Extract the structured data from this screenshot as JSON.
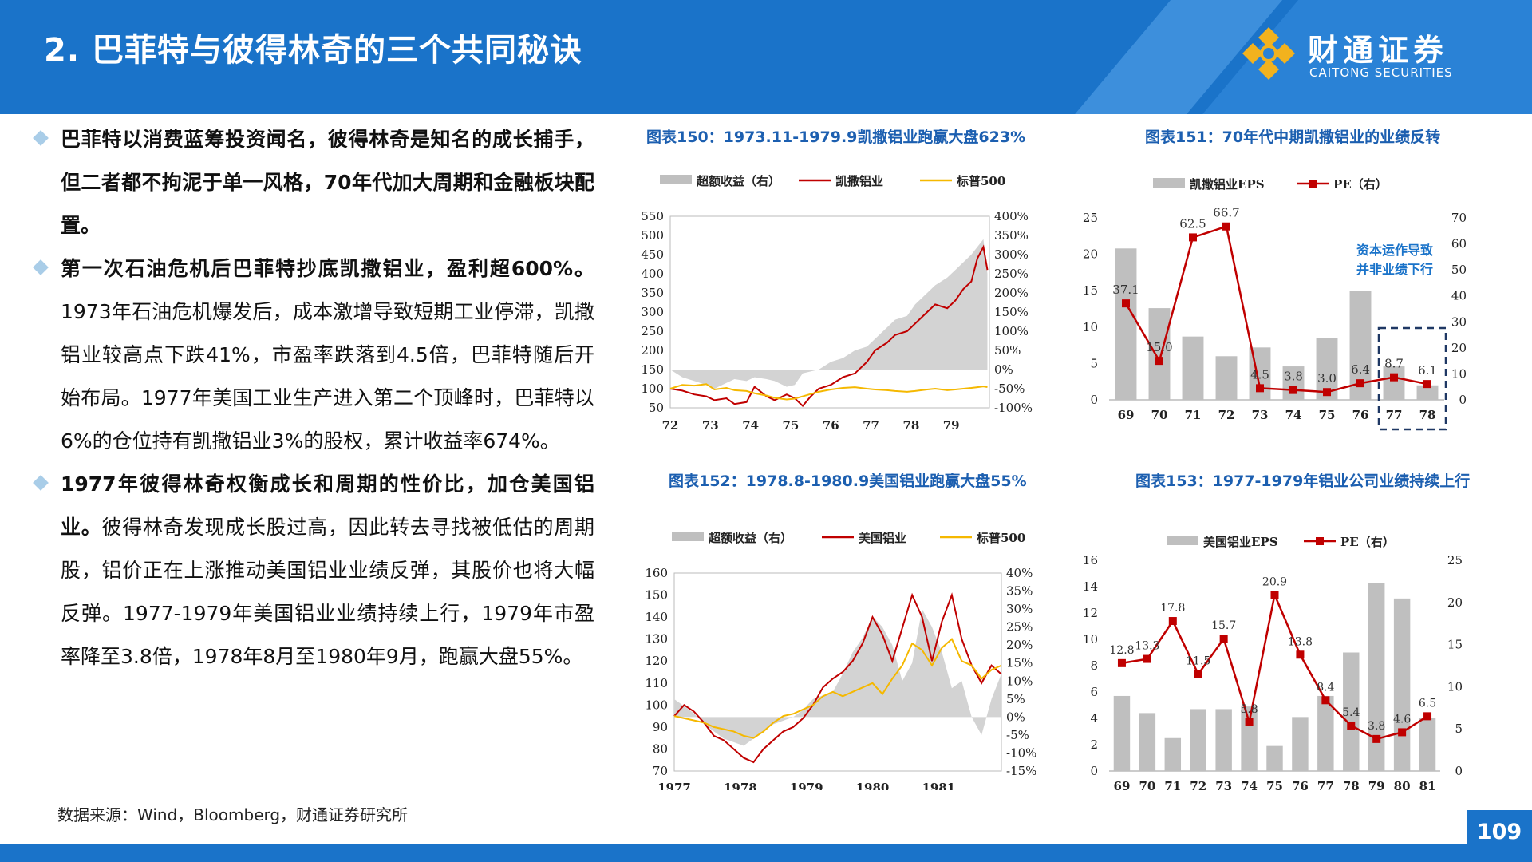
{
  "header": {
    "title": "2. 巴菲特与彼得林奇的三个共同秘诀"
  },
  "logo": {
    "cn": "财通证券",
    "en": "CAITONG SECURITIES",
    "icon": "caitong-logo-icon",
    "color": "#f2b21e"
  },
  "colors": {
    "brand_blue": "#1a73c9",
    "red": "#c00000",
    "gold": "#f5b800",
    "gray": "#bfbfbf",
    "navy": "#1f3864"
  },
  "bullets": [
    {
      "bold": "巴菲特以消费蓝筹投资闻名，彼得林奇是知名的成长捕手，但二者都不拘泥于单一风格，70年代加大周期和金融板块配置。",
      "normal": ""
    },
    {
      "bold": "第一次石油危机后巴菲特抄底凯撒铝业，盈利超600%。",
      "normal": "1973年石油危机爆发后，成本激增导致短期工业停滞，凯撒铝业较高点下跌41%，市盈率跌落到4.5倍，巴菲特随后开始布局。1977年美国工业生产进入第二个顶峰时，巴菲特以6%的仓位持有凯撒铝业3%的股权，累计收益率674%。"
    },
    {
      "bold": "1977年彼得林奇权衡成长和周期的性价比，加仓美国铝业。",
      "normal": "彼得林奇发现成长股过高，因此转去寻找被低估的周期股，铝价正在上涨推动美国铝业业绩反弹，其股价也将大幅反弹。1977-1979年美国铝业业绩持续上行，1979年市盈率降至3.8倍，1978年8月至1980年9月，跑赢大盘55%。"
    }
  ],
  "source": "数据来源：Wind，Bloomberg，财通证券研究所",
  "page_number": "109",
  "chart_data": [
    {
      "id": "chart150",
      "type": "line",
      "title": "图表150：1973.11-1979.9凯撒铝业跑赢大盘623%",
      "legend": [
        "超额收益（右）",
        "凯撒铝业",
        "标普500"
      ],
      "legend_position": "top",
      "x_ticks": [
        "72",
        "73",
        "74",
        "75",
        "76",
        "77",
        "78",
        "79"
      ],
      "x_range": [
        1972,
        1979.95
      ],
      "y_left": {
        "range": [
          50,
          550
        ],
        "ticks": [
          "550",
          "500",
          "450",
          "400",
          "350",
          "300",
          "250",
          "200",
          "150",
          "100",
          "50"
        ]
      },
      "y_right": {
        "range": [
          -100,
          400
        ],
        "ticks": [
          "400%",
          "350%",
          "300%",
          "250%",
          "200%",
          "150%",
          "100%",
          "50%",
          "0%",
          "-50%",
          "-100%"
        ]
      },
      "x": [
        1972.0,
        1972.3,
        1972.6,
        1972.9,
        1973.1,
        1973.4,
        1973.6,
        1973.9,
        1974.1,
        1974.4,
        1974.6,
        1974.9,
        1975.1,
        1975.3,
        1975.5,
        1975.7,
        1976.0,
        1976.3,
        1976.6,
        1976.9,
        1977.1,
        1977.4,
        1977.6,
        1977.9,
        1978.1,
        1978.4,
        1978.6,
        1978.9,
        1979.1,
        1979.3,
        1979.5,
        1979.65,
        1979.8,
        1979.9
      ],
      "series": [
        {
          "name": "超额收益（右）",
          "kind": "area",
          "axis": "right",
          "values": [
            0,
            -20,
            -30,
            -40,
            -50,
            -35,
            -25,
            -30,
            -20,
            -25,
            -30,
            -45,
            -40,
            -10,
            -5,
            0,
            20,
            30,
            50,
            60,
            80,
            110,
            130,
            140,
            170,
            200,
            220,
            240,
            260,
            280,
            300,
            320,
            340,
            250
          ]
        },
        {
          "name": "凯撒铝业",
          "kind": "line",
          "axis": "left",
          "values": [
            100,
            95,
            85,
            80,
            70,
            75,
            60,
            65,
            105,
            80,
            70,
            85,
            75,
            55,
            80,
            100,
            110,
            130,
            140,
            170,
            200,
            220,
            240,
            250,
            270,
            300,
            320,
            310,
            330,
            360,
            380,
            440,
            470,
            410
          ]
        },
        {
          "name": "标普500",
          "kind": "line",
          "axis": "left",
          "values": [
            100,
            110,
            108,
            112,
            98,
            102,
            96,
            94,
            88,
            82,
            76,
            72,
            74,
            80,
            86,
            92,
            98,
            102,
            104,
            100,
            98,
            96,
            94,
            92,
            94,
            98,
            100,
            96,
            98,
            100,
            102,
            104,
            106,
            104
          ]
        }
      ]
    },
    {
      "id": "chart151",
      "type": "bar",
      "title": "图表151：70年代中期凯撒铝业的业绩反转",
      "legend": [
        "凯撒铝业EPS",
        "PE（右）"
      ],
      "legend_position": "top",
      "categories": [
        "69",
        "70",
        "71",
        "72",
        "73",
        "74",
        "75",
        "76",
        "77",
        "78"
      ],
      "y_left": {
        "range": [
          0,
          25
        ],
        "ticks": [
          "25",
          "20",
          "15",
          "10",
          "5",
          "0"
        ]
      },
      "y_right": {
        "range": [
          0,
          70
        ],
        "ticks": [
          "70",
          "60",
          "50",
          "40",
          "30",
          "20",
          "10",
          "0"
        ]
      },
      "series": [
        {
          "name": "凯撒铝业EPS",
          "kind": "bar",
          "axis": "left",
          "values": [
            20.8,
            12.6,
            8.7,
            6.0,
            7.2,
            4.6,
            8.5,
            15.0,
            4.6,
            2.0
          ]
        },
        {
          "name": "PE（右）",
          "kind": "line",
          "axis": "right",
          "values": [
            37.1,
            15.0,
            62.5,
            66.7,
            4.5,
            3.8,
            3.0,
            6.4,
            8.7,
            6.1
          ]
        }
      ],
      "data_labels": [
        "37.1",
        "15.0",
        "62.5",
        "66.7",
        "4.5",
        "3.8",
        "3.0",
        "6.4",
        "8.7",
        "6.1"
      ],
      "annotation": [
        "资本运作导致",
        "并非业绩下行"
      ],
      "highlight_categories": [
        "77",
        "78"
      ]
    },
    {
      "id": "chart152",
      "type": "line",
      "title": "图表152：1978.8-1980.9美国铝业跑赢大盘55%",
      "legend": [
        "超额收益（右）",
        "美国铝业",
        "标普500"
      ],
      "legend_position": "top",
      "x_ticks": [
        "1977",
        "1978",
        "1979",
        "1980",
        "1981"
      ],
      "x_range": [
        1977,
        1981.95
      ],
      "y_left": {
        "range": [
          70,
          160
        ],
        "ticks": [
          "160",
          "150",
          "140",
          "130",
          "120",
          "110",
          "100",
          "90",
          "80",
          "70"
        ]
      },
      "y_right": {
        "range": [
          -15,
          40
        ],
        "ticks": [
          "40%",
          "35%",
          "30%",
          "25%",
          "20%",
          "15%",
          "10%",
          "5%",
          "0%",
          "-5%",
          "-10%",
          "-15%"
        ]
      },
      "x": [
        1977.0,
        1977.15,
        1977.3,
        1977.45,
        1977.6,
        1977.75,
        1977.9,
        1978.05,
        1978.2,
        1978.35,
        1978.5,
        1978.65,
        1978.8,
        1978.95,
        1979.1,
        1979.25,
        1979.4,
        1979.55,
        1979.7,
        1979.85,
        1980.0,
        1980.15,
        1980.3,
        1980.45,
        1980.6,
        1980.75,
        1980.9,
        1981.05,
        1981.2,
        1981.35,
        1981.5,
        1981.65,
        1981.8,
        1981.95
      ],
      "series": [
        {
          "name": "超额收益（右）",
          "kind": "area",
          "axis": "right",
          "values": [
            5,
            3,
            1,
            -2,
            -4,
            -6,
            -7,
            -8,
            -6,
            -4,
            -2,
            -1,
            0,
            2,
            5,
            6,
            7,
            12,
            18,
            22,
            28,
            25,
            20,
            10,
            15,
            30,
            25,
            18,
            8,
            10,
            0,
            -5,
            5,
            12
          ]
        },
        {
          "name": "美国铝业",
          "kind": "line",
          "axis": "left",
          "values": [
            95,
            100,
            97,
            92,
            86,
            84,
            80,
            76,
            74,
            80,
            84,
            88,
            90,
            94,
            100,
            108,
            112,
            115,
            120,
            128,
            140,
            132,
            120,
            135,
            150,
            140,
            120,
            138,
            150,
            130,
            118,
            110,
            118,
            114
          ]
        },
        {
          "name": "标普500",
          "kind": "line",
          "axis": "left",
          "values": [
            95,
            94,
            93,
            92,
            90,
            89,
            88,
            86,
            85,
            88,
            92,
            95,
            96,
            98,
            100,
            104,
            106,
            104,
            106,
            108,
            110,
            105,
            112,
            118,
            128,
            125,
            118,
            126,
            130,
            120,
            118,
            112,
            116,
            118
          ]
        }
      ]
    },
    {
      "id": "chart153",
      "type": "bar",
      "title": "图表153：1977-1979年铝业公司业绩持续上行",
      "legend": [
        "美国铝业EPS",
        "PE（右）"
      ],
      "legend_position": "top",
      "categories": [
        "69",
        "70",
        "71",
        "72",
        "73",
        "74",
        "75",
        "76",
        "77",
        "78",
        "79",
        "80",
        "81"
      ],
      "y_left": {
        "range": [
          0,
          16
        ],
        "ticks": [
          "16",
          "14",
          "12",
          "10",
          "8",
          "6",
          "4",
          "2",
          "0"
        ]
      },
      "y_right": {
        "range": [
          0,
          25
        ],
        "ticks": [
          "25",
          "20",
          "15",
          "10",
          "5",
          "0"
        ]
      },
      "series": [
        {
          "name": "美国铝业EPS",
          "kind": "bar",
          "axis": "left",
          "values": [
            5.7,
            4.4,
            2.5,
            4.7,
            4.7,
            4.9,
            1.9,
            4.1,
            5.7,
            9.0,
            14.3,
            13.1,
            4.0
          ]
        },
        {
          "name": "PE（右）",
          "kind": "line",
          "axis": "right",
          "values": [
            12.8,
            13.3,
            17.8,
            11.5,
            15.7,
            5.8,
            20.9,
            13.8,
            8.4,
            5.4,
            3.8,
            4.6,
            6.5
          ]
        }
      ],
      "data_labels": [
        "12.8",
        "13.3",
        "17.8",
        "11.5",
        "15.7",
        "5.8",
        "20.9",
        "13.8",
        "8.4",
        "5.4",
        "3.8",
        "4.6",
        "6.5"
      ]
    }
  ]
}
